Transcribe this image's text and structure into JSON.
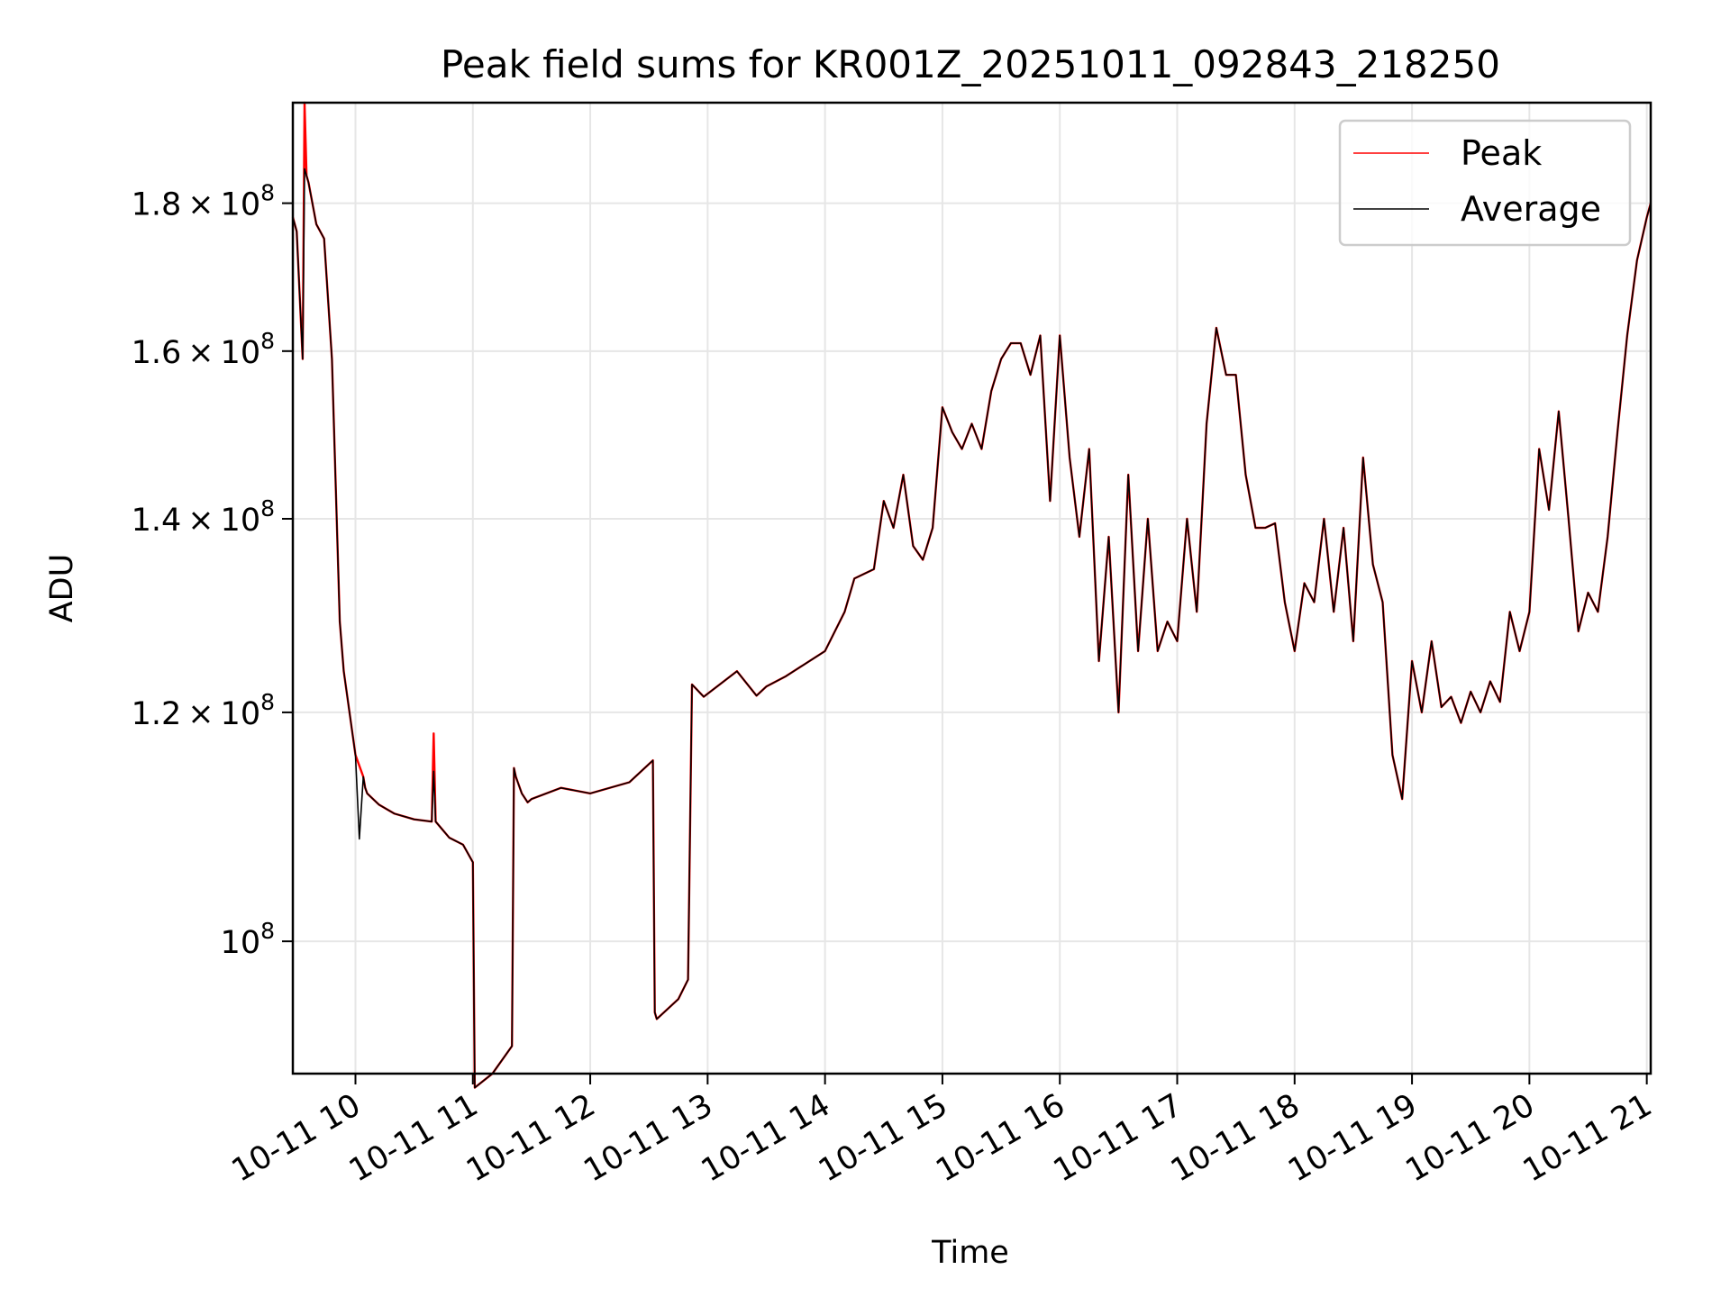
{
  "chart_data": {
    "type": "line",
    "title": "Peak field sums for KR001Z_20251011_092843_218250",
    "xlabel": "Time",
    "ylabel": "ADU",
    "y_scale": "log",
    "x_range": [
      "10-11 09:28",
      "10-11 21:02"
    ],
    "ylim": [
      90000000,
      195000000
    ],
    "grid": true,
    "legend_position": "top-right",
    "x_tick_labels": [
      "10-11 10",
      "10-11 11",
      "10-11 12",
      "10-11 13",
      "10-11 14",
      "10-11 15",
      "10-11 16",
      "10-11 17",
      "10-11 18",
      "10-11 19",
      "10-11 20",
      "10-11 21"
    ],
    "x_tick_times": [
      "10-11 10:00",
      "10-11 11:00",
      "10-11 12:00",
      "10-11 13:00",
      "10-11 14:00",
      "10-11 15:00",
      "10-11 16:00",
      "10-11 17:00",
      "10-11 18:00",
      "10-11 19:00",
      "10-11 20:00",
      "10-11 21:00"
    ],
    "y_ticks": [
      {
        "value": 100000000,
        "mantissa": "",
        "exp": "8"
      },
      {
        "value": 120000000,
        "mantissa": "1.2",
        "exp": "8"
      },
      {
        "value": 140000000,
        "mantissa": "1.4",
        "exp": "8"
      },
      {
        "value": 160000000,
        "mantissa": "1.6",
        "exp": "8"
      },
      {
        "value": 180000000,
        "mantissa": "1.8",
        "exp": "8"
      }
    ],
    "series": [
      {
        "name": "Peak",
        "color": "#ff0000",
        "x": [
          "10-11 09:28",
          "10-11 09:30",
          "10-11 09:33",
          "10-11 09:34",
          "10-11 09:35",
          "10-11 09:36",
          "10-11 09:40",
          "10-11 09:44",
          "10-11 09:48",
          "10-11 09:52",
          "10-11 09:54",
          "10-11 10:00",
          "10-11 10:02",
          "10-11 10:04",
          "10-11 10:05",
          "10-11 10:06",
          "10-11 10:12",
          "10-11 10:20",
          "10-11 10:30",
          "10-11 10:39",
          "10-11 10:40",
          "10-11 10:41",
          "10-11 10:48",
          "10-11 10:55",
          "10-11 11:00",
          "10-11 11:01",
          "10-11 11:10",
          "10-11 11:20",
          "10-11 11:21",
          "10-11 11:22",
          "10-11 11:25",
          "10-11 11:28",
          "10-11 11:30",
          "10-11 11:45",
          "10-11 12:00",
          "10-11 12:20",
          "10-11 12:32",
          "10-11 12:33",
          "10-11 12:34",
          "10-11 12:45",
          "10-11 12:50",
          "10-11 12:52",
          "10-11 12:58",
          "10-11 13:15",
          "10-11 13:25",
          "10-11 13:30",
          "10-11 13:40",
          "10-11 14:00",
          "10-11 14:10",
          "10-11 14:15",
          "10-11 14:25",
          "10-11 14:30",
          "10-11 14:35",
          "10-11 14:40",
          "10-11 14:45",
          "10-11 14:50",
          "10-11 14:55",
          "10-11 15:00",
          "10-11 15:05",
          "10-11 15:10",
          "10-11 15:15",
          "10-11 15:20",
          "10-11 15:25",
          "10-11 15:30",
          "10-11 15:35",
          "10-11 15:40",
          "10-11 15:45",
          "10-11 15:50",
          "10-11 15:55",
          "10-11 16:00",
          "10-11 16:05",
          "10-11 16:10",
          "10-11 16:15",
          "10-11 16:20",
          "10-11 16:25",
          "10-11 16:30",
          "10-11 16:35",
          "10-11 16:40",
          "10-11 16:45",
          "10-11 16:50",
          "10-11 16:55",
          "10-11 17:00",
          "10-11 17:05",
          "10-11 17:10",
          "10-11 17:15",
          "10-11 17:20",
          "10-11 17:25",
          "10-11 17:30",
          "10-11 17:35",
          "10-11 17:40",
          "10-11 17:45",
          "10-11 17:50",
          "10-11 17:55",
          "10-11 18:00",
          "10-11 18:05",
          "10-11 18:10",
          "10-11 18:15",
          "10-11 18:20",
          "10-11 18:25",
          "10-11 18:30",
          "10-11 18:35",
          "10-11 18:40",
          "10-11 18:45",
          "10-11 18:50",
          "10-11 18:55",
          "10-11 19:00",
          "10-11 19:05",
          "10-11 19:10",
          "10-11 19:15",
          "10-11 19:20",
          "10-11 19:25",
          "10-11 19:30",
          "10-11 19:35",
          "10-11 19:40",
          "10-11 19:45",
          "10-11 19:50",
          "10-11 19:55",
          "10-11 20:00",
          "10-11 20:05",
          "10-11 20:10",
          "10-11 20:15",
          "10-11 20:20",
          "10-11 20:25",
          "10-11 20:30",
          "10-11 20:35",
          "10-11 20:40",
          "10-11 20:45",
          "10-11 20:50",
          "10-11 20:55",
          "10-11 21:00",
          "10-11 21:02"
        ],
        "values": [
          178000000,
          176000000,
          159000000,
          195000000,
          184000000,
          183000000,
          177000000,
          175000000,
          159000000,
          129000000,
          124000000,
          116000000,
          115000000,
          114000000,
          113000000,
          112500000,
          111500000,
          110700000,
          110200000,
          110000000,
          118000000,
          110000000,
          108600000,
          108000000,
          106500000,
          89000000,
          90000000,
          92000000,
          114800000,
          114000000,
          112500000,
          111700000,
          112000000,
          113000000,
          112500000,
          113500000,
          115500000,
          94500000,
          94000000,
          95500000,
          97000000,
          122700000,
          121500000,
          124000000,
          121600000,
          122500000,
          123500000,
          126000000,
          130000000,
          133500000,
          134500000,
          142000000,
          139000000,
          145000000,
          137000000,
          135500000,
          139000000,
          153000000,
          150000000,
          148000000,
          151000000,
          148000000,
          155000000,
          159000000,
          161000000,
          161000000,
          157000000,
          162000000,
          142000000,
          162000000,
          147000000,
          138000000,
          148000000,
          125000000,
          138000000,
          120000000,
          145000000,
          126000000,
          140000000,
          126000000,
          129000000,
          127000000,
          140000000,
          130000000,
          151000000,
          163000000,
          157000000,
          157000000,
          145000000,
          139000000,
          139000000,
          139500000,
          131000000,
          126000000,
          133000000,
          131000000,
          140000000,
          130000000,
          139000000,
          127000000,
          147000000,
          135000000,
          131000000,
          116000000,
          112000000,
          125000000,
          120000000,
          127000000,
          120500000,
          121500000,
          119000000,
          122000000,
          120000000,
          123000000,
          121000000,
          130000000,
          126000000,
          130000000,
          148000000,
          141000000,
          152500000,
          140000000,
          128000000,
          132000000,
          130000000,
          138000000,
          150000000,
          162000000,
          172000000,
          178000000,
          180000000
        ]
      },
      {
        "name": "Average",
        "color": "#000000",
        "x": [
          "10-11 09:28",
          "10-11 09:30",
          "10-11 09:33",
          "10-11 09:34",
          "10-11 09:35",
          "10-11 09:36",
          "10-11 09:40",
          "10-11 09:44",
          "10-11 09:48",
          "10-11 09:52",
          "10-11 09:54",
          "10-11 10:00",
          "10-11 10:02",
          "10-11 10:04",
          "10-11 10:05",
          "10-11 10:06",
          "10-11 10:12",
          "10-11 10:20",
          "10-11 10:30",
          "10-11 10:39",
          "10-11 10:40",
          "10-11 10:41",
          "10-11 10:48",
          "10-11 10:55",
          "10-11 11:00",
          "10-11 11:01",
          "10-11 11:10",
          "10-11 11:20",
          "10-11 11:21",
          "10-11 11:22",
          "10-11 11:25",
          "10-11 11:28",
          "10-11 11:30",
          "10-11 11:45",
          "10-11 12:00",
          "10-11 12:20",
          "10-11 12:32",
          "10-11 12:33",
          "10-11 12:34",
          "10-11 12:45",
          "10-11 12:50",
          "10-11 12:52",
          "10-11 12:58",
          "10-11 13:15",
          "10-11 13:25",
          "10-11 13:30",
          "10-11 13:40",
          "10-11 14:00",
          "10-11 14:10",
          "10-11 14:15",
          "10-11 14:25",
          "10-11 14:30",
          "10-11 14:35",
          "10-11 14:40",
          "10-11 14:45",
          "10-11 14:50",
          "10-11 14:55",
          "10-11 15:00",
          "10-11 15:05",
          "10-11 15:10",
          "10-11 15:15",
          "10-11 15:20",
          "10-11 15:25",
          "10-11 15:30",
          "10-11 15:35",
          "10-11 15:40",
          "10-11 15:45",
          "10-11 15:50",
          "10-11 15:55",
          "10-11 16:00",
          "10-11 16:05",
          "10-11 16:10",
          "10-11 16:15",
          "10-11 16:20",
          "10-11 16:25",
          "10-11 16:30",
          "10-11 16:35",
          "10-11 16:40",
          "10-11 16:45",
          "10-11 16:50",
          "10-11 16:55",
          "10-11 17:00",
          "10-11 17:05",
          "10-11 17:10",
          "10-11 17:15",
          "10-11 17:20",
          "10-11 17:25",
          "10-11 17:30",
          "10-11 17:35",
          "10-11 17:40",
          "10-11 17:45",
          "10-11 17:50",
          "10-11 17:55",
          "10-11 18:00",
          "10-11 18:05",
          "10-11 18:10",
          "10-11 18:15",
          "10-11 18:20",
          "10-11 18:25",
          "10-11 18:30",
          "10-11 18:35",
          "10-11 18:40",
          "10-11 18:45",
          "10-11 18:50",
          "10-11 18:55",
          "10-11 19:00",
          "10-11 19:05",
          "10-11 19:10",
          "10-11 19:15",
          "10-11 19:20",
          "10-11 19:25",
          "10-11 19:30",
          "10-11 19:35",
          "10-11 19:40",
          "10-11 19:45",
          "10-11 19:50",
          "10-11 19:55",
          "10-11 20:00",
          "10-11 20:05",
          "10-11 20:10",
          "10-11 20:15",
          "10-11 20:20",
          "10-11 20:25",
          "10-11 20:30",
          "10-11 20:35",
          "10-11 20:40",
          "10-11 20:45",
          "10-11 20:50",
          "10-11 20:55",
          "10-11 21:00",
          "10-11 21:02"
        ],
        "values": [
          178000000,
          176000000,
          159000000,
          185000000,
          184000000,
          183000000,
          177000000,
          175000000,
          159000000,
          129000000,
          124000000,
          116000000,
          108500000,
          114000000,
          113000000,
          112500000,
          111500000,
          110700000,
          110200000,
          110000000,
          114500000,
          110000000,
          108600000,
          108000000,
          106500000,
          89000000,
          90000000,
          92000000,
          114800000,
          114000000,
          112500000,
          111700000,
          112000000,
          113000000,
          112500000,
          113500000,
          115500000,
          94500000,
          94000000,
          95500000,
          97000000,
          122700000,
          121500000,
          124000000,
          121600000,
          122500000,
          123500000,
          126000000,
          130000000,
          133500000,
          134500000,
          142000000,
          139000000,
          145000000,
          137000000,
          135500000,
          139000000,
          153000000,
          150000000,
          148000000,
          151000000,
          148000000,
          155000000,
          159000000,
          161000000,
          161000000,
          157000000,
          162000000,
          142000000,
          162000000,
          147000000,
          138000000,
          148000000,
          125000000,
          138000000,
          120000000,
          145000000,
          126000000,
          140000000,
          126000000,
          129000000,
          127000000,
          140000000,
          130000000,
          151000000,
          163000000,
          157000000,
          157000000,
          145000000,
          139000000,
          139000000,
          139500000,
          131000000,
          126000000,
          133000000,
          131000000,
          140000000,
          130000000,
          139000000,
          127000000,
          147000000,
          135000000,
          131000000,
          116000000,
          112000000,
          125000000,
          120000000,
          127000000,
          120500000,
          121500000,
          119000000,
          122000000,
          120000000,
          123000000,
          121000000,
          130000000,
          126000000,
          130000000,
          148000000,
          141000000,
          152500000,
          140000000,
          128000000,
          132000000,
          130000000,
          138000000,
          150000000,
          162000000,
          172000000,
          178000000,
          180000000
        ]
      }
    ]
  }
}
